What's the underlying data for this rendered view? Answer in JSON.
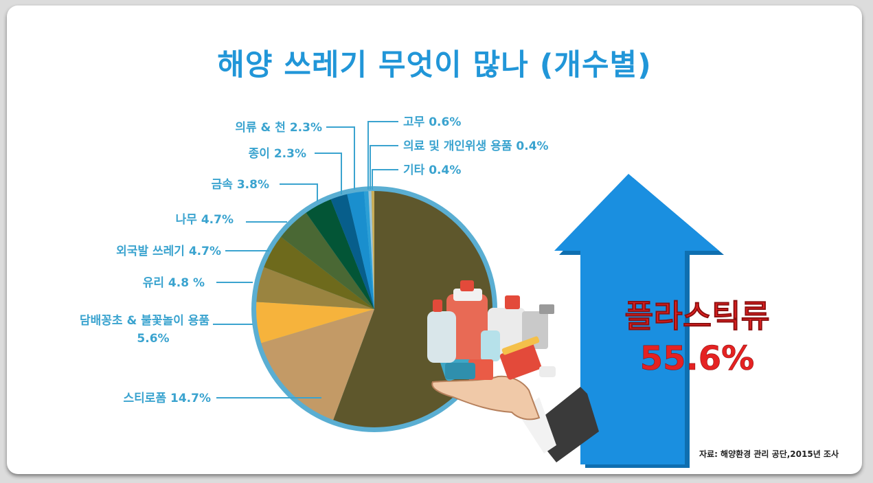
{
  "title": "해양 쓰레기 무엇이 많나 (개수별)",
  "chart_data": {
    "type": "pie",
    "title": "해양 쓰레기 무엇이 많나 (개수별)",
    "slices": [
      {
        "name": "플라스틱류",
        "label": "플라스틱류",
        "value": 55.6,
        "color": "#5e572c"
      },
      {
        "name": "스티로폼",
        "label": "스티로폼 14.7%",
        "value": 14.7,
        "color": "#c39a66"
      },
      {
        "name": "담배꽁초 & 불꽃놀이 용품",
        "label": "담배꽁초 & 불꽃놀이 용품",
        "label2": "5.6%",
        "value": 5.6,
        "color": "#f6b33c"
      },
      {
        "name": "유리",
        "label": "유리 4.8 %",
        "value": 4.8,
        "color": "#9a8440"
      },
      {
        "name": "외국발 쓰레기",
        "label": "외국발 쓰레기 4.7%",
        "value": 4.7,
        "color": "#6e6a1c"
      },
      {
        "name": "나무",
        "label": "나무 4.7%",
        "value": 4.7,
        "color": "#4a6834"
      },
      {
        "name": "금속",
        "label": "금속 3.8%",
        "value": 3.8,
        "color": "#035536"
      },
      {
        "name": "종이",
        "label": "종이 2.3%",
        "value": 2.3,
        "color": "#075e8b"
      },
      {
        "name": "의류 & 천",
        "label": "의류 & 천 2.3%",
        "value": 2.3,
        "color": "#1a8fce"
      },
      {
        "name": "고무",
        "label": "고무 0.6%",
        "value": 0.6,
        "color": "#2b9fd6"
      },
      {
        "name": "의료 및 개인위생 용품",
        "label": "의료 및 개인위생 용품 0.4%",
        "value": 0.4,
        "color": "#9fc6d8"
      },
      {
        "name": "기타",
        "label": "기타 0.4%",
        "value": 0.4,
        "color": "#c9ad58"
      }
    ],
    "ring_color": "#5aaed2"
  },
  "highlight": {
    "name": "플라스틱류",
    "value": "55.6%",
    "text_color": "#e52222",
    "arrow_color": "#1a8fe0"
  },
  "source": "자료: 해양환경 관리 공단,2015년 조사"
}
